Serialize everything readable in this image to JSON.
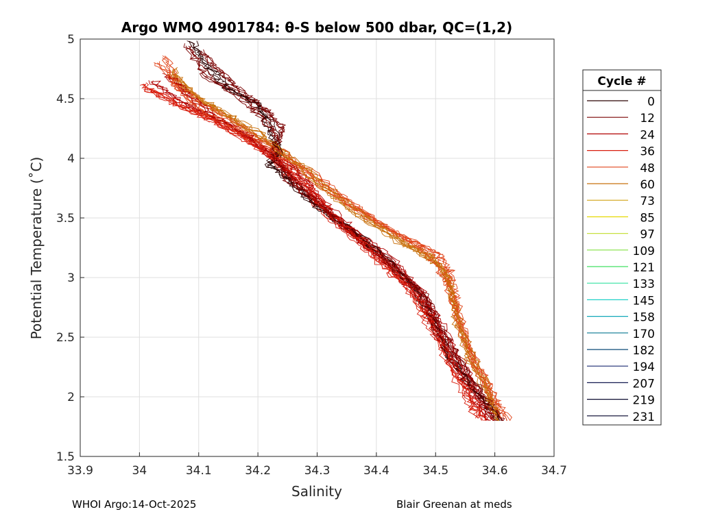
{
  "chart_data": {
    "type": "line",
    "title": "Argo WMO 4901784: θ-S below 500 dbar,  QC=(1,2)",
    "xlabel": "Salinity",
    "ylabel": "Potential Temperature (˚C)",
    "xlim": [
      33.9,
      34.7
    ],
    "ylim": [
      1.5,
      5
    ],
    "xticks": [
      "33.9",
      "34",
      "34.1",
      "34.2",
      "34.3",
      "34.4",
      "34.5",
      "34.6",
      "34.7"
    ],
    "yticks": [
      "1.5",
      "2",
      "2.5",
      "3",
      "3.5",
      "4",
      "4.5",
      "5"
    ],
    "grid": true,
    "legend": {
      "title": "Cycle #",
      "position": "right",
      "entries": [
        {
          "label": "0",
          "color": "#2a0000"
        },
        {
          "label": "12",
          "color": "#7a0000"
        },
        {
          "label": "24",
          "color": "#b00000"
        },
        {
          "label": "36",
          "color": "#d81c0c"
        },
        {
          "label": "48",
          "color": "#e0441a"
        },
        {
          "label": "60",
          "color": "#c8700c"
        },
        {
          "label": "73",
          "color": "#d0a010"
        },
        {
          "label": "85",
          "color": "#e6d800"
        },
        {
          "label": "97",
          "color": "#c8e040"
        },
        {
          "label": "109",
          "color": "#80e040"
        },
        {
          "label": "121",
          "color": "#40e060"
        },
        {
          "label": "133",
          "color": "#30e0a0"
        },
        {
          "label": "145",
          "color": "#20d0c8"
        },
        {
          "label": "158",
          "color": "#10a8b8"
        },
        {
          "label": "170",
          "color": "#087890"
        },
        {
          "label": "182",
          "color": "#0a4a78"
        },
        {
          "label": "194",
          "color": "#1a2a70"
        },
        {
          "label": "207",
          "color": "#121a50"
        },
        {
          "label": "219",
          "color": "#0c0c30"
        },
        {
          "label": "231",
          "color": "#000028"
        }
      ]
    },
    "series": [
      {
        "name": "0",
        "color": "#2a0000",
        "points": [
          [
            34.09,
            4.98
          ],
          [
            34.12,
            4.75
          ],
          [
            34.15,
            4.6
          ],
          [
            34.2,
            4.45
          ],
          [
            34.22,
            4.3
          ],
          [
            34.24,
            4.05
          ],
          [
            34.22,
            3.95
          ],
          [
            34.26,
            3.8
          ],
          [
            34.3,
            3.6
          ],
          [
            34.36,
            3.4
          ],
          [
            34.42,
            3.15
          ],
          [
            34.47,
            2.9
          ],
          [
            34.5,
            2.6
          ],
          [
            34.53,
            2.3
          ],
          [
            34.57,
            2.05
          ],
          [
            34.61,
            1.8
          ]
        ]
      },
      {
        "name": "12",
        "color": "#7a0000",
        "points": [
          [
            34.08,
            4.95
          ],
          [
            34.11,
            4.7
          ],
          [
            34.16,
            4.55
          ],
          [
            34.2,
            4.38
          ],
          [
            34.23,
            4.2
          ],
          [
            34.23,
            4.0
          ],
          [
            34.25,
            3.82
          ],
          [
            34.3,
            3.62
          ],
          [
            34.35,
            3.42
          ],
          [
            34.42,
            3.12
          ],
          [
            34.48,
            2.85
          ],
          [
            34.5,
            2.58
          ],
          [
            34.53,
            2.3
          ],
          [
            34.57,
            2.02
          ],
          [
            34.6,
            1.8
          ]
        ]
      },
      {
        "name": "24",
        "color": "#b00000",
        "points": [
          [
            34.05,
            4.7
          ],
          [
            34.08,
            4.55
          ],
          [
            34.13,
            4.35
          ],
          [
            34.18,
            4.2
          ],
          [
            34.24,
            3.95
          ],
          [
            34.28,
            3.75
          ],
          [
            34.33,
            3.5
          ],
          [
            34.38,
            3.28
          ],
          [
            34.43,
            3.08
          ],
          [
            34.47,
            2.85
          ],
          [
            34.5,
            2.6
          ],
          [
            34.53,
            2.3
          ],
          [
            34.56,
            2.05
          ],
          [
            34.59,
            1.8
          ]
        ]
      },
      {
        "name": "36",
        "color": "#d81c0c",
        "points": [
          [
            34.0,
            4.62
          ],
          [
            34.05,
            4.5
          ],
          [
            34.1,
            4.38
          ],
          [
            34.17,
            4.2
          ],
          [
            34.23,
            4.0
          ],
          [
            34.28,
            3.78
          ],
          [
            34.32,
            3.55
          ],
          [
            34.37,
            3.33
          ],
          [
            34.42,
            3.1
          ],
          [
            34.46,
            2.9
          ],
          [
            34.49,
            2.65
          ],
          [
            34.52,
            2.35
          ],
          [
            34.55,
            2.08
          ],
          [
            34.58,
            1.8
          ]
        ]
      },
      {
        "name": "48",
        "color": "#e0441a",
        "points": [
          [
            34.04,
            4.85
          ],
          [
            34.06,
            4.6
          ],
          [
            34.1,
            4.4
          ],
          [
            34.17,
            4.22
          ],
          [
            34.24,
            4.0
          ],
          [
            34.3,
            3.78
          ],
          [
            34.36,
            3.58
          ],
          [
            34.42,
            3.4
          ],
          [
            34.47,
            3.28
          ],
          [
            34.5,
            3.2
          ],
          [
            34.52,
            3.05
          ],
          [
            34.53,
            2.85
          ],
          [
            34.54,
            2.6
          ],
          [
            34.56,
            2.3
          ],
          [
            34.59,
            2.05
          ],
          [
            34.62,
            1.8
          ]
        ]
      },
      {
        "name": "60",
        "color": "#c8700c",
        "points": [
          [
            34.06,
            4.75
          ],
          [
            34.09,
            4.55
          ],
          [
            34.14,
            4.38
          ],
          [
            34.2,
            4.2
          ],
          [
            34.26,
            3.98
          ],
          [
            34.32,
            3.72
          ],
          [
            34.38,
            3.5
          ],
          [
            34.44,
            3.3
          ],
          [
            34.48,
            3.2
          ],
          [
            34.51,
            3.1
          ],
          [
            34.53,
            2.9
          ],
          [
            34.54,
            2.62
          ],
          [
            34.56,
            2.32
          ],
          [
            34.59,
            2.05
          ],
          [
            34.61,
            1.8
          ]
        ]
      }
    ],
    "extra_profiles": [
      {
        "color": "#b00000",
        "points": [
          [
            34.02,
            4.65
          ],
          [
            34.07,
            4.48
          ],
          [
            34.13,
            4.34
          ],
          [
            34.19,
            4.17
          ],
          [
            34.25,
            3.97
          ],
          [
            34.29,
            3.76
          ],
          [
            34.33,
            3.52
          ],
          [
            34.39,
            3.3
          ],
          [
            34.44,
            3.08
          ],
          [
            34.48,
            2.85
          ],
          [
            34.51,
            2.6
          ],
          [
            34.54,
            2.32
          ],
          [
            34.57,
            2.05
          ],
          [
            34.6,
            1.8
          ]
        ]
      },
      {
        "color": "#e0441a",
        "points": [
          [
            34.03,
            4.8
          ],
          [
            34.07,
            4.58
          ],
          [
            34.12,
            4.42
          ],
          [
            34.18,
            4.24
          ],
          [
            34.25,
            4.02
          ],
          [
            34.31,
            3.8
          ],
          [
            34.37,
            3.58
          ],
          [
            34.43,
            3.38
          ],
          [
            34.47,
            3.25
          ],
          [
            34.5,
            3.12
          ],
          [
            34.52,
            2.95
          ],
          [
            34.53,
            2.75
          ],
          [
            34.55,
            2.45
          ],
          [
            34.58,
            2.15
          ],
          [
            34.61,
            1.82
          ]
        ]
      },
      {
        "color": "#d81c0c",
        "points": [
          [
            34.01,
            4.58
          ],
          [
            34.06,
            4.45
          ],
          [
            34.12,
            4.32
          ],
          [
            34.18,
            4.15
          ],
          [
            34.24,
            3.94
          ],
          [
            34.28,
            3.72
          ],
          [
            34.32,
            3.5
          ],
          [
            34.37,
            3.3
          ],
          [
            34.41,
            3.1
          ],
          [
            34.45,
            2.92
          ],
          [
            34.48,
            2.68
          ],
          [
            34.51,
            2.4
          ],
          [
            34.54,
            2.1
          ],
          [
            34.57,
            1.82
          ]
        ]
      },
      {
        "color": "#7a0000",
        "points": [
          [
            34.1,
            4.9
          ],
          [
            34.14,
            4.68
          ],
          [
            34.18,
            4.52
          ],
          [
            34.21,
            4.4
          ],
          [
            34.24,
            4.25
          ],
          [
            34.22,
            4.05
          ],
          [
            34.25,
            3.85
          ],
          [
            34.3,
            3.6
          ],
          [
            34.36,
            3.38
          ],
          [
            34.43,
            3.1
          ],
          [
            34.48,
            2.82
          ],
          [
            34.51,
            2.55
          ],
          [
            34.54,
            2.28
          ],
          [
            34.58,
            2.0
          ],
          [
            34.61,
            1.8
          ]
        ]
      },
      {
        "color": "#c8700c",
        "points": [
          [
            34.05,
            4.7
          ],
          [
            34.1,
            4.5
          ],
          [
            34.15,
            4.36
          ],
          [
            34.21,
            4.18
          ],
          [
            34.27,
            3.95
          ],
          [
            34.33,
            3.7
          ],
          [
            34.39,
            3.48
          ],
          [
            34.45,
            3.28
          ],
          [
            34.49,
            3.18
          ],
          [
            34.52,
            3.0
          ],
          [
            34.53,
            2.75
          ],
          [
            34.55,
            2.45
          ],
          [
            34.58,
            2.15
          ],
          [
            34.6,
            1.85
          ]
        ]
      }
    ]
  },
  "footer": {
    "left": "WHOI Argo:14-Oct-2025",
    "right": "Blair Greenan at meds"
  }
}
